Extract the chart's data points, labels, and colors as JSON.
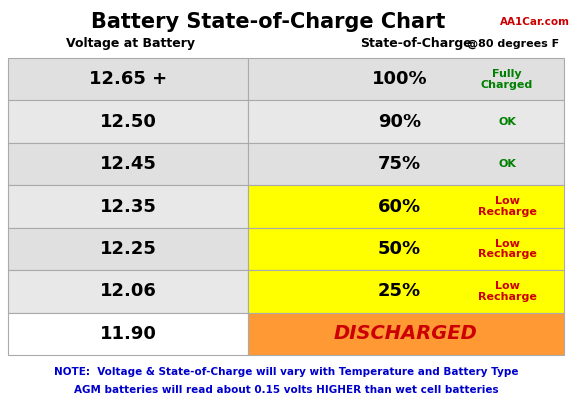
{
  "title_main": "Battery State-of-Charge Chart",
  "title_source": "AA1Car.com",
  "col1_header": "Voltage at Battery",
  "col2_header": "State-of-Charge",
  "col2_header_suffix": "@80 degrees F",
  "rows": [
    {
      "voltage": "12.65 +",
      "pct": "100%",
      "label": "Fully\nCharged",
      "left_bg": "#e0e0e0",
      "right_bg": "#e0e0e0",
      "pct_color": "#000000",
      "label_color": "#008000"
    },
    {
      "voltage": "12.50",
      "pct": "90%",
      "label": "OK",
      "left_bg": "#e8e8e8",
      "right_bg": "#e8e8e8",
      "pct_color": "#000000",
      "label_color": "#008000"
    },
    {
      "voltage": "12.45",
      "pct": "75%",
      "label": "OK",
      "left_bg": "#e0e0e0",
      "right_bg": "#e0e0e0",
      "pct_color": "#000000",
      "label_color": "#008000"
    },
    {
      "voltage": "12.35",
      "pct": "60%",
      "label": "Low\nRecharge",
      "left_bg": "#e8e8e8",
      "right_bg": "#ffff00",
      "pct_color": "#000000",
      "label_color": "#cc0000"
    },
    {
      "voltage": "12.25",
      "pct": "50%",
      "label": "Low\nRecharge",
      "left_bg": "#e0e0e0",
      "right_bg": "#ffff00",
      "pct_color": "#000000",
      "label_color": "#cc0000"
    },
    {
      "voltage": "12.06",
      "pct": "25%",
      "label": "Low\nRecharge",
      "left_bg": "#e8e8e8",
      "right_bg": "#ffff00",
      "pct_color": "#000000",
      "label_color": "#cc0000"
    },
    {
      "voltage": "11.90",
      "pct": "DISCHARGED",
      "label": "",
      "left_bg": "#ffffff",
      "right_bg": "#ff9933",
      "pct_color": "#cc0000",
      "label_color": "#cc0000"
    }
  ],
  "note1": "NOTE:  Voltage & State-of-Charge will vary with Temperature and Battery Type",
  "note2": "AGM batteries will read about 0.15 volts HIGHER than wet cell batteries",
  "note_color": "#0000cc",
  "border_color": "#aaaaaa",
  "fig_bg": "#ffffff",
  "title_fontsize": 15,
  "source_fontsize": 7.5,
  "header_fontsize": 9,
  "voltage_fontsize": 13,
  "pct_fontsize": 13,
  "label_fontsize": 8,
  "discharged_fontsize": 14,
  "note_fontsize": 7.5
}
